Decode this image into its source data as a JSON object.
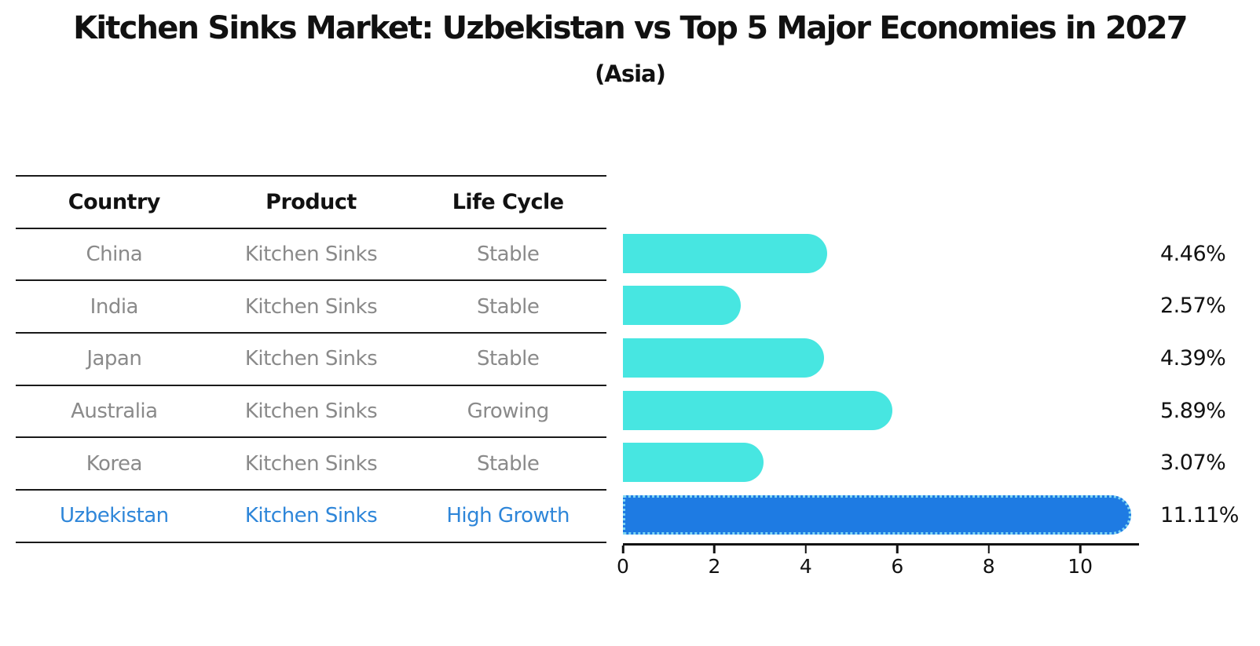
{
  "title": "Kitchen Sinks Market: Uzbekistan vs Top 5 Major Economies in 2027",
  "subtitle": "(Asia)",
  "table": {
    "headers": [
      "Country",
      "Product",
      "Life Cycle"
    ],
    "rows": [
      {
        "country": "China",
        "product": "Kitchen Sinks",
        "life_cycle": "Stable",
        "highlight": false
      },
      {
        "country": "India",
        "product": "Kitchen Sinks",
        "life_cycle": "Stable",
        "highlight": false
      },
      {
        "country": "Japan",
        "product": "Kitchen Sinks",
        "life_cycle": "Stable",
        "highlight": false
      },
      {
        "country": "Australia",
        "product": "Kitchen Sinks",
        "life_cycle": "Growing",
        "highlight": false
      },
      {
        "country": "Korea",
        "product": "Kitchen Sinks",
        "life_cycle": "Stable",
        "highlight": false
      },
      {
        "country": "Uzbekistan",
        "product": "Kitchen Sinks",
        "life_cycle": "High Growth",
        "highlight": true
      }
    ]
  },
  "chart_data": {
    "type": "bar",
    "orientation": "horizontal",
    "title": "Kitchen Sinks Market: Uzbekistan vs Top 5 Major Economies in 2027",
    "subtitle": "(Asia)",
    "categories": [
      "China",
      "India",
      "Japan",
      "Australia",
      "Korea",
      "Uzbekistan"
    ],
    "values": [
      4.46,
      2.57,
      4.39,
      5.89,
      3.07,
      11.11
    ],
    "value_labels": [
      "4.46%",
      "2.57%",
      "4.39%",
      "5.89%",
      "3.07%",
      "11.11%"
    ],
    "unit": "%",
    "xlabel": "",
    "ylabel": "",
    "xlim": [
      0,
      11.2
    ],
    "x_ticks": [
      0,
      2,
      4,
      6,
      8,
      10
    ],
    "grid": false,
    "legend": false,
    "highlight_index": 5,
    "colors": {
      "bar": "#47E6E1",
      "highlight_bar": "#1E7BE3",
      "highlight_edge": "#7FD6F2",
      "highlight_text": "#2E86D9",
      "table_text": "#8A8A8A",
      "axis": "#111111"
    }
  }
}
